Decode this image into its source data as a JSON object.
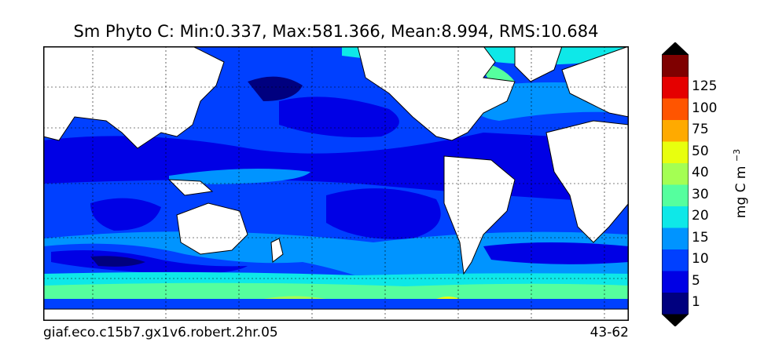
{
  "title": "Sm Phyto C: Min:0.337, Max:581.366, Mean:8.994, RMS:10.684",
  "footer": {
    "left": "giaf.eco.c15b7.gx1v6.robert.2hr.05",
    "right": "43-62"
  },
  "colorbar": {
    "units_base": "mg C m",
    "units_exp": "−3",
    "extend": "both",
    "levels": [
      {
        "label": "1",
        "color": "#00007f"
      },
      {
        "label": "5",
        "color": "#0000e5"
      },
      {
        "label": "10",
        "color": "#0040ff"
      },
      {
        "label": "15",
        "color": "#0094ff"
      },
      {
        "label": "20",
        "color": "#0ee8e8"
      },
      {
        "label": "30",
        "color": "#55ff9e"
      },
      {
        "label": "40",
        "color": "#a4ff53"
      },
      {
        "label": "50",
        "color": "#e8ff0e"
      },
      {
        "label": "75",
        "color": "#ffaa00"
      },
      {
        "label": "100",
        "color": "#ff5500"
      },
      {
        "label": "125",
        "color": "#e50000"
      }
    ],
    "top_color": "#7f0000",
    "under_color": "#000000",
    "over_color": "#000000"
  },
  "map": {
    "land_color": "#ffffff",
    "ocean_color": "#0040ff",
    "grid": true
  }
}
